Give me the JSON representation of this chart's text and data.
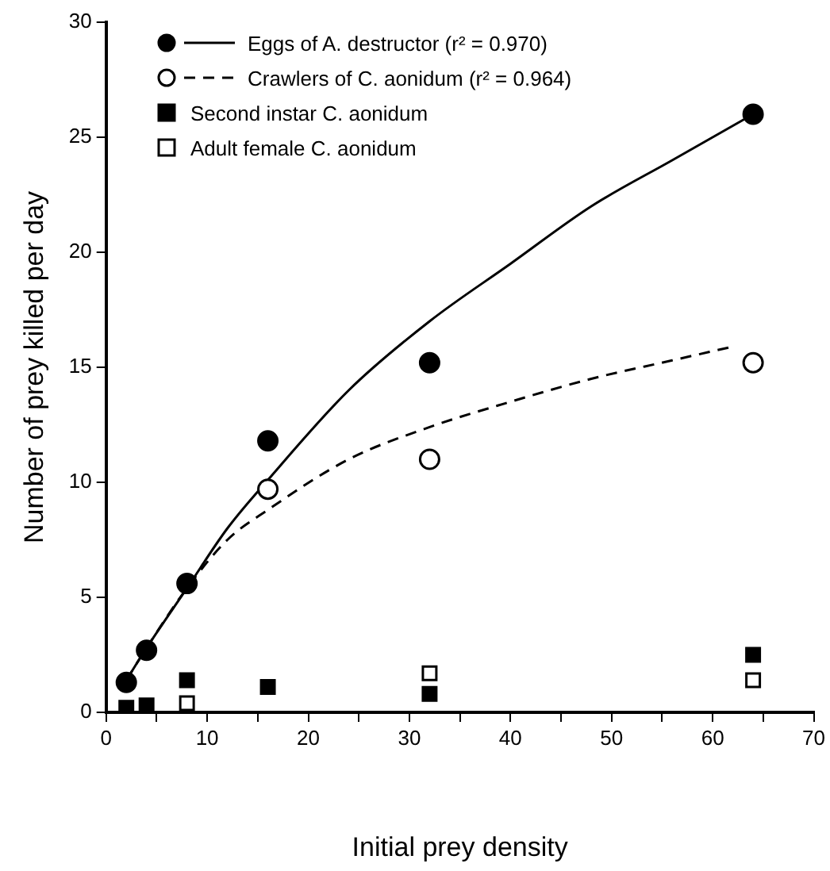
{
  "chart_data": {
    "type": "scatter",
    "xlabel": "Initial prey density",
    "ylabel": "Number of prey killed per day",
    "xlim": [
      0,
      70
    ],
    "ylim": [
      0,
      30
    ],
    "xticks": [
      0,
      {
        "value": 5,
        "label": null
      },
      10,
      {
        "value": 15,
        "label": null
      },
      20,
      {
        "value": 25,
        "label": null
      },
      30,
      {
        "value": 35,
        "label": null
      },
      40,
      {
        "value": 45,
        "label": null
      },
      50,
      {
        "value": 55,
        "label": null
      },
      60,
      {
        "value": 65,
        "label": null
      },
      70
    ],
    "yticks": [
      0,
      5,
      10,
      15,
      20,
      25,
      30
    ],
    "grid": false,
    "legend": "top left",
    "series": [
      {
        "name": "Eggs of A. destructor (r² = 0.970)",
        "marker": "circle",
        "color": "#000000",
        "x": [
          2,
          4,
          8,
          16,
          32,
          64
        ],
        "values": [
          1.3,
          2.7,
          5.6,
          11.8,
          15.2,
          26.0
        ]
      },
      {
        "type": "line",
        "color": "#000000",
        "line_style": "solid",
        "marker": "none",
        "x": [
          2,
          4,
          8,
          12,
          16,
          24,
          32,
          40,
          48,
          56,
          64
        ],
        "values": [
          1.4,
          2.8,
          5.4,
          8.0,
          10.1,
          14.0,
          17.0,
          19.5,
          22.0,
          24.0,
          26.0
        ]
      },
      {
        "name": "Crawlers of C. aonidum (r² = 0.964)",
        "marker": "circle",
        "color": "#ffffff",
        "x": [
          16,
          32,
          64
        ],
        "values": [
          9.7,
          11.0,
          15.2
        ]
      },
      {
        "type": "line",
        "color": "#000000",
        "line_style": "dashed",
        "marker": "none",
        "x": [
          2,
          4,
          8,
          12,
          16,
          24,
          32,
          40,
          48,
          56,
          62
        ],
        "values": [
          1.4,
          2.8,
          5.4,
          7.5,
          8.8,
          11.0,
          12.4,
          13.5,
          14.5,
          15.3,
          15.9
        ]
      },
      {
        "name": "Second instar C. aonidum",
        "marker": "square",
        "color": "#000000",
        "x": [
          2,
          4,
          8,
          16,
          32,
          64
        ],
        "values": [
          0.2,
          0.3,
          1.4,
          1.1,
          0.8,
          2.5
        ]
      },
      {
        "name": "Adult female C. aonidum",
        "marker": "square",
        "color": "#ffffff",
        "x": [
          8,
          32,
          64
        ],
        "values": [
          0.4,
          1.7,
          1.4
        ]
      }
    ]
  }
}
